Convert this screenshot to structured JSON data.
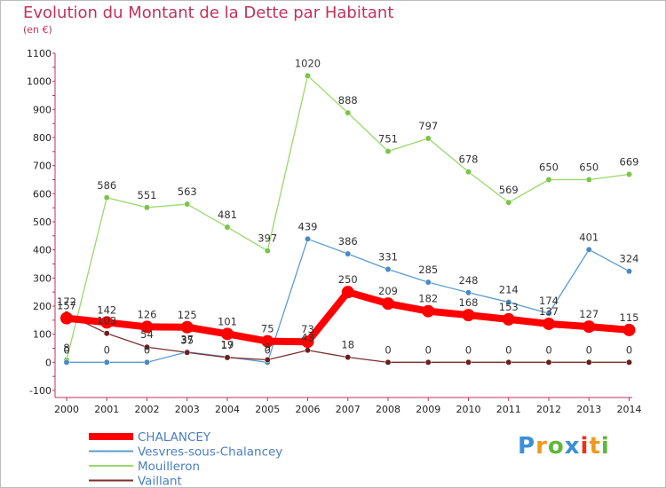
{
  "chart_data": {
    "type": "line",
    "title": "Evolution du Montant de la Dette par Habitant",
    "subtitle": "(en €)",
    "xlabel": "",
    "ylabel": "",
    "x": [
      "2000",
      "2001",
      "2002",
      "2003",
      "2004",
      "2005",
      "2006",
      "2007",
      "2008",
      "2009",
      "2010",
      "2011",
      "2012",
      "2013",
      "2014"
    ],
    "ylim": [
      -100,
      1100
    ],
    "yticks": [
      -100,
      0,
      100,
      200,
      300,
      400,
      500,
      600,
      700,
      800,
      900,
      1000,
      1100
    ],
    "grid": false,
    "legend_position": "bottom-left",
    "series": [
      {
        "name": "Mouilleron",
        "color": "#99d96a",
        "marker_color": "#7cc44a",
        "values": [
          8,
          586,
          551,
          563,
          481,
          397,
          1020,
          888,
          751,
          797,
          678,
          569,
          650,
          650,
          669
        ]
      },
      {
        "name": "Vesvres-sous-Chalancey",
        "color": "#5c9bd1",
        "marker_color": "#4a8ac4",
        "values": [
          0,
          0,
          0,
          37,
          19,
          0,
          439,
          386,
          331,
          285,
          248,
          214,
          174,
          401,
          324
        ]
      },
      {
        "name": "Vaillant",
        "color": "#7d2e2e",
        "marker_color": "#6a1f1f",
        "values": [
          172,
          103,
          54,
          35,
          17,
          9,
          43,
          18,
          0,
          0,
          0,
          0,
          0,
          0,
          0
        ]
      },
      {
        "name": "CHALANCEY",
        "color": "#ff0000",
        "marker_color": "#ff0000",
        "values": [
          157,
          142,
          126,
          125,
          101,
          75,
          73,
          250,
          209,
          182,
          168,
          153,
          137,
          127,
          115
        ]
      }
    ],
    "legend_order": [
      "CHALANCEY",
      "Vesvres-sous-Chalancey",
      "Mouilleron",
      "Vaillant"
    ]
  },
  "logo": {
    "text": "Proxiti",
    "colors": [
      "#3a8fd6",
      "#f09a1e",
      "#5fb83a",
      "#3a8fd6",
      "#e8331c",
      "#f09a1e",
      "#5fb83a"
    ]
  }
}
